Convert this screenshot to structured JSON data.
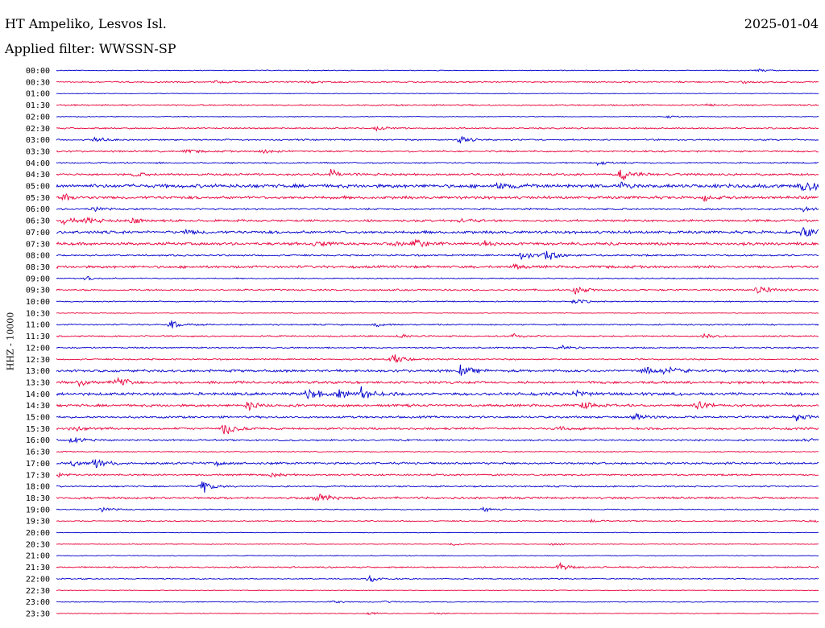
{
  "header": {
    "station": "HT Ampeliko, Lesvos Isl.",
    "date": "2025-01-04",
    "filter": "Applied filter: WWSSN-SP"
  },
  "colors": {
    "trace_a": "#0000cc",
    "trace_b": "#e8003a",
    "text": "#000000"
  },
  "chart_data": {
    "type": "line",
    "title": "HT Ampeliko, Lesvos Isl.",
    "subtitle": "Applied filter: WWSSN-SP",
    "ylabel": "HHZ - 10000",
    "xlabel": "",
    "grid": false,
    "legend": "none",
    "row_interval_minutes": 30,
    "y_tick_labels": [
      "00:00",
      "00:30",
      "01:00",
      "01:30",
      "02:00",
      "02:30",
      "03:00",
      "03:30",
      "04:00",
      "04:30",
      "05:00",
      "05:30",
      "06:00",
      "06:30",
      "07:00",
      "07:30",
      "08:00",
      "08:30",
      "09:00",
      "09:30",
      "10:00",
      "10:30",
      "11:00",
      "11:30",
      "12:00",
      "12:30",
      "13:00",
      "13:30",
      "14:00",
      "14:30",
      "15:00",
      "15:30",
      "16:00",
      "16:30",
      "17:00",
      "17:30",
      "18:00",
      "18:30",
      "19:00",
      "19:30",
      "20:00",
      "20:30",
      "21:00",
      "21:30",
      "22:00",
      "22:30",
      "23:00",
      "23:30"
    ],
    "events_note_units": "t = fraction of the 30-minute row, amp = relative amplitude",
    "rows": [
      {
        "noise": 0.6,
        "events": [
          {
            "t": 0.92,
            "amp": 2
          }
        ]
      },
      {
        "noise": 1.0,
        "events": [
          {
            "t": 0.21,
            "amp": 2
          },
          {
            "t": 0.33,
            "amp": 2
          },
          {
            "t": 0.9,
            "amp": 2
          }
        ]
      },
      {
        "noise": 0.5,
        "events": []
      },
      {
        "noise": 1.0,
        "events": [
          {
            "t": 0.85,
            "amp": 2
          }
        ]
      },
      {
        "noise": 0.5,
        "events": [
          {
            "t": 0.8,
            "amp": 2
          }
        ]
      },
      {
        "noise": 1.0,
        "events": [
          {
            "t": 0.42,
            "amp": 3
          }
        ]
      },
      {
        "noise": 1.0,
        "events": [
          {
            "t": 0.05,
            "amp": 4
          },
          {
            "t": 0.53,
            "amp": 7
          }
        ]
      },
      {
        "noise": 1.2,
        "events": [
          {
            "t": 0.17,
            "amp": 3
          },
          {
            "t": 0.27,
            "amp": 3
          }
        ]
      },
      {
        "noise": 1.0,
        "events": [
          {
            "t": 0.71,
            "amp": 3
          }
        ]
      },
      {
        "noise": 1.5,
        "events": [
          {
            "t": 0.1,
            "amp": 3
          },
          {
            "t": 0.36,
            "amp": 8
          },
          {
            "t": 0.74,
            "amp": 10
          }
        ]
      },
      {
        "noise": 2.5,
        "events": [
          {
            "t": 0.58,
            "amp": 5
          },
          {
            "t": 0.74,
            "amp": 4
          },
          {
            "t": 0.98,
            "amp": 12
          }
        ]
      },
      {
        "noise": 2.0,
        "events": [
          {
            "t": 0.01,
            "amp": 5
          },
          {
            "t": 0.85,
            "amp": 3
          }
        ]
      },
      {
        "noise": 1.2,
        "events": [
          {
            "t": 0.05,
            "amp": 3
          },
          {
            "t": 0.98,
            "amp": 4
          }
        ]
      },
      {
        "noise": 1.5,
        "events": [
          {
            "t": 0.01,
            "amp": 5
          },
          {
            "t": 0.04,
            "amp": 5
          },
          {
            "t": 0.1,
            "amp": 5
          },
          {
            "t": 0.53,
            "amp": 3
          }
        ]
      },
      {
        "noise": 2.0,
        "events": [
          {
            "t": 0.17,
            "amp": 3
          },
          {
            "t": 0.98,
            "amp": 8
          }
        ]
      },
      {
        "noise": 2.0,
        "events": [
          {
            "t": 0.34,
            "amp": 4
          },
          {
            "t": 0.44,
            "amp": 4
          },
          {
            "t": 0.47,
            "amp": 7
          },
          {
            "t": 0.56,
            "amp": 3
          }
        ]
      },
      {
        "noise": 1.2,
        "events": [
          {
            "t": 0.61,
            "amp": 8
          },
          {
            "t": 0.64,
            "amp": 9
          }
        ]
      },
      {
        "noise": 1.8,
        "events": [
          {
            "t": 0.6,
            "amp": 3
          }
        ]
      },
      {
        "noise": 0.8,
        "events": [
          {
            "t": 0.04,
            "amp": 3
          }
        ]
      },
      {
        "noise": 1.2,
        "events": [
          {
            "t": 0.68,
            "amp": 7
          },
          {
            "t": 0.92,
            "amp": 8
          }
        ]
      },
      {
        "noise": 0.8,
        "events": [
          {
            "t": 0.68,
            "amp": 4
          }
        ]
      },
      {
        "noise": 0.5,
        "events": []
      },
      {
        "noise": 1.0,
        "events": [
          {
            "t": 0.15,
            "amp": 6
          },
          {
            "t": 0.42,
            "amp": 3
          }
        ]
      },
      {
        "noise": 1.0,
        "events": [
          {
            "t": 0.45,
            "amp": 3
          },
          {
            "t": 0.6,
            "amp": 3
          },
          {
            "t": 0.85,
            "amp": 3
          }
        ]
      },
      {
        "noise": 1.0,
        "events": [
          {
            "t": 0.66,
            "amp": 3
          }
        ]
      },
      {
        "noise": 1.0,
        "events": [
          {
            "t": 0.44,
            "amp": 8
          }
        ]
      },
      {
        "noise": 1.8,
        "events": [
          {
            "t": 0.53,
            "amp": 8
          },
          {
            "t": 0.77,
            "amp": 6
          },
          {
            "t": 0.8,
            "amp": 7
          }
        ]
      },
      {
        "noise": 1.8,
        "events": [
          {
            "t": 0.03,
            "amp": 4
          },
          {
            "t": 0.08,
            "amp": 8
          }
        ]
      },
      {
        "noise": 2.0,
        "events": [
          {
            "t": 0.33,
            "amp": 10
          },
          {
            "t": 0.37,
            "amp": 6
          },
          {
            "t": 0.4,
            "amp": 8
          },
          {
            "t": 0.68,
            "amp": 4
          }
        ]
      },
      {
        "noise": 1.8,
        "events": [
          {
            "t": 0.25,
            "amp": 6
          },
          {
            "t": 0.69,
            "amp": 5
          },
          {
            "t": 0.84,
            "amp": 6
          }
        ]
      },
      {
        "noise": 1.5,
        "events": [
          {
            "t": 0.76,
            "amp": 5
          },
          {
            "t": 0.97,
            "amp": 5
          }
        ]
      },
      {
        "noise": 1.5,
        "events": [
          {
            "t": 0.02,
            "amp": 5
          },
          {
            "t": 0.22,
            "amp": 12
          },
          {
            "t": 0.66,
            "amp": 3
          }
        ]
      },
      {
        "noise": 1.2,
        "events": [
          {
            "t": 0.02,
            "amp": 6
          },
          {
            "t": 0.98,
            "amp": 3
          }
        ]
      },
      {
        "noise": 0.8,
        "events": []
      },
      {
        "noise": 1.5,
        "events": [
          {
            "t": 0.02,
            "amp": 5
          },
          {
            "t": 0.05,
            "amp": 8
          },
          {
            "t": 0.21,
            "amp": 3
          }
        ]
      },
      {
        "noise": 1.2,
        "events": [
          {
            "t": 0.0,
            "amp": 3
          },
          {
            "t": 0.28,
            "amp": 3
          }
        ]
      },
      {
        "noise": 1.0,
        "events": [
          {
            "t": 0.19,
            "amp": 10
          }
        ]
      },
      {
        "noise": 1.5,
        "events": [
          {
            "t": 0.34,
            "amp": 12
          }
        ]
      },
      {
        "noise": 0.8,
        "events": [
          {
            "t": 0.06,
            "amp": 3
          },
          {
            "t": 0.56,
            "amp": 3
          }
        ]
      },
      {
        "noise": 0.8,
        "events": [
          {
            "t": 0.7,
            "amp": 2
          },
          {
            "t": 0.99,
            "amp": 2
          }
        ]
      },
      {
        "noise": 0.5,
        "events": []
      },
      {
        "noise": 0.5,
        "events": [
          {
            "t": 0.52,
            "amp": 2
          },
          {
            "t": 0.65,
            "amp": 2
          }
        ]
      },
      {
        "noise": 0.6,
        "events": []
      },
      {
        "noise": 1.0,
        "events": [
          {
            "t": 0.66,
            "amp": 6
          }
        ]
      },
      {
        "noise": 0.8,
        "events": [
          {
            "t": 0.41,
            "amp": 5
          }
        ]
      },
      {
        "noise": 0.5,
        "events": []
      },
      {
        "noise": 0.6,
        "events": [
          {
            "t": 0.36,
            "amp": 3
          },
          {
            "t": 0.43,
            "amp": 2
          }
        ]
      },
      {
        "noise": 0.6,
        "events": [
          {
            "t": 0.41,
            "amp": 2
          },
          {
            "t": 0.49,
            "amp": 2
          }
        ]
      }
    ]
  }
}
